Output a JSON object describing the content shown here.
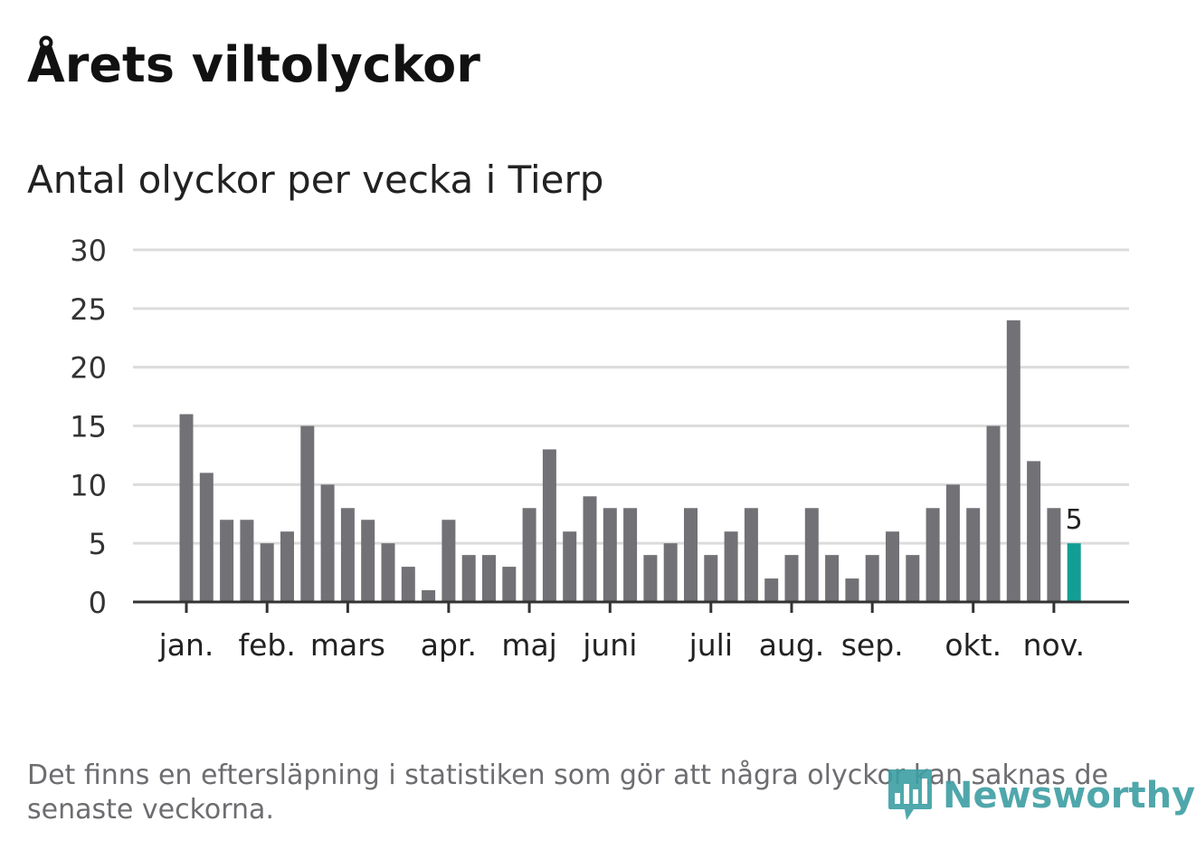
{
  "title": "Årets viltolyckor",
  "subtitle": "Antal olyckor per vecka i Tierp",
  "footnote": "Det finns en eftersläpning i statistiken som gör att några olyckor kan saknas de senaste veckorna.",
  "logo": {
    "text": "Newsworthy",
    "icon": "bar-chart-icon"
  },
  "colors": {
    "bar": "#727176",
    "highlight": "#129e95",
    "grid": "#dcdcdc",
    "axis": "#333333"
  },
  "chart_data": {
    "type": "bar",
    "title": "Antal olyckor per vecka i Tierp",
    "xlabel": "",
    "ylabel": "",
    "ylim": [
      0,
      30
    ],
    "yticks": [
      0,
      5,
      10,
      15,
      20,
      25,
      30
    ],
    "grid": true,
    "values": [
      16,
      11,
      7,
      7,
      5,
      6,
      15,
      10,
      8,
      7,
      5,
      3,
      1,
      7,
      4,
      4,
      3,
      8,
      13,
      6,
      9,
      8,
      8,
      4,
      5,
      8,
      4,
      6,
      8,
      2,
      4,
      8,
      4,
      2,
      4,
      6,
      4,
      8,
      10,
      8,
      15,
      24,
      12,
      8,
      5
    ],
    "highlight_index": 44,
    "highlight_label": "5",
    "month_labels": [
      {
        "label": "jan.",
        "week": 0
      },
      {
        "label": "feb.",
        "week": 4
      },
      {
        "label": "mars",
        "week": 8
      },
      {
        "label": "apr.",
        "week": 13
      },
      {
        "label": "maj",
        "week": 17
      },
      {
        "label": "juni",
        "week": 21
      },
      {
        "label": "juli",
        "week": 26
      },
      {
        "label": "aug.",
        "week": 30
      },
      {
        "label": "sep.",
        "week": 34
      },
      {
        "label": "okt.",
        "week": 39
      },
      {
        "label": "nov.",
        "week": 43
      }
    ]
  }
}
